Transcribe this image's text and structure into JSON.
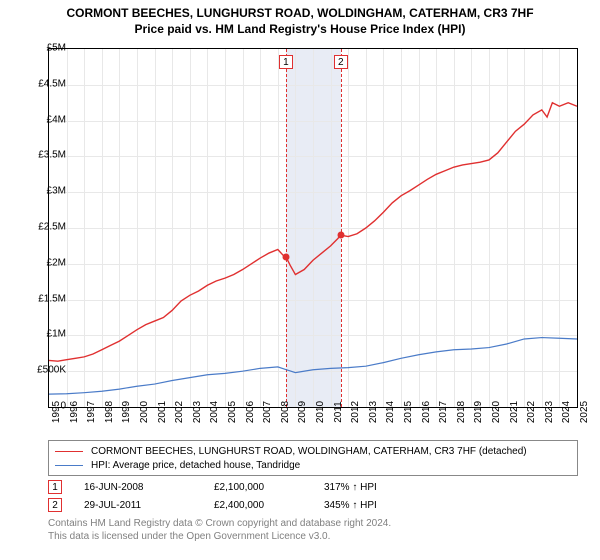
{
  "title": {
    "line1": "CORMONT BEECHES, LUNGHURST ROAD, WOLDINGHAM, CATERHAM, CR3 7HF",
    "line2": "Price paid vs. HM Land Registry's House Price Index (HPI)"
  },
  "chart": {
    "type": "line",
    "background_color": "#ffffff",
    "grid_color": "#e8e8e8",
    "border_color": "#000000",
    "ylim": [
      0,
      5000000
    ],
    "ytick_step": 500000,
    "ylabels": [
      "0",
      "£500K",
      "£1M",
      "£1.5M",
      "£2M",
      "£2.5M",
      "£3M",
      "£3.5M",
      "£4M",
      "£4.5M",
      "£5M"
    ],
    "xlim": [
      1995,
      2025
    ],
    "xlabels": [
      "1995",
      "1996",
      "1997",
      "1998",
      "1999",
      "2000",
      "2001",
      "2002",
      "2003",
      "2004",
      "2005",
      "2006",
      "2007",
      "2008",
      "2009",
      "2010",
      "2011",
      "2012",
      "2013",
      "2014",
      "2015",
      "2016",
      "2017",
      "2018",
      "2019",
      "2020",
      "2021",
      "2022",
      "2023",
      "2024",
      "2025"
    ],
    "shade_band": {
      "from": 2008.46,
      "to": 2011.58,
      "color": "#e8ecf5"
    },
    "series": [
      {
        "name": "property",
        "color": "#e03030",
        "width": 1.4,
        "label": "CORMONT BEECHES, LUNGHURST ROAD, WOLDINGHAM, CATERHAM, CR3 7HF (detached)",
        "points": [
          [
            1995.0,
            650000
          ],
          [
            1995.5,
            640000
          ],
          [
            1996.0,
            660000
          ],
          [
            1996.5,
            680000
          ],
          [
            1997.0,
            700000
          ],
          [
            1997.5,
            740000
          ],
          [
            1998.0,
            800000
          ],
          [
            1998.5,
            860000
          ],
          [
            1999.0,
            920000
          ],
          [
            1999.5,
            1000000
          ],
          [
            2000.0,
            1080000
          ],
          [
            2000.5,
            1150000
          ],
          [
            2001.0,
            1200000
          ],
          [
            2001.5,
            1250000
          ],
          [
            2002.0,
            1350000
          ],
          [
            2002.5,
            1480000
          ],
          [
            2003.0,
            1560000
          ],
          [
            2003.5,
            1620000
          ],
          [
            2004.0,
            1700000
          ],
          [
            2004.5,
            1760000
          ],
          [
            2005.0,
            1800000
          ],
          [
            2005.5,
            1850000
          ],
          [
            2006.0,
            1920000
          ],
          [
            2006.5,
            2000000
          ],
          [
            2007.0,
            2080000
          ],
          [
            2007.5,
            2150000
          ],
          [
            2008.0,
            2200000
          ],
          [
            2008.3,
            2120000
          ],
          [
            2008.46,
            2100000
          ],
          [
            2008.7,
            1980000
          ],
          [
            2009.0,
            1850000
          ],
          [
            2009.5,
            1920000
          ],
          [
            2010.0,
            2050000
          ],
          [
            2010.5,
            2150000
          ],
          [
            2011.0,
            2250000
          ],
          [
            2011.4,
            2350000
          ],
          [
            2011.58,
            2400000
          ],
          [
            2012.0,
            2380000
          ],
          [
            2012.5,
            2420000
          ],
          [
            2013.0,
            2500000
          ],
          [
            2013.5,
            2600000
          ],
          [
            2014.0,
            2720000
          ],
          [
            2014.5,
            2850000
          ],
          [
            2015.0,
            2950000
          ],
          [
            2015.5,
            3020000
          ],
          [
            2016.0,
            3100000
          ],
          [
            2016.5,
            3180000
          ],
          [
            2017.0,
            3250000
          ],
          [
            2017.5,
            3300000
          ],
          [
            2018.0,
            3350000
          ],
          [
            2018.5,
            3380000
          ],
          [
            2019.0,
            3400000
          ],
          [
            2019.5,
            3420000
          ],
          [
            2020.0,
            3450000
          ],
          [
            2020.5,
            3550000
          ],
          [
            2021.0,
            3700000
          ],
          [
            2021.5,
            3850000
          ],
          [
            2022.0,
            3950000
          ],
          [
            2022.5,
            4080000
          ],
          [
            2023.0,
            4150000
          ],
          [
            2023.3,
            4050000
          ],
          [
            2023.6,
            4250000
          ],
          [
            2024.0,
            4200000
          ],
          [
            2024.5,
            4250000
          ],
          [
            2025.0,
            4200000
          ]
        ]
      },
      {
        "name": "hpi",
        "color": "#4a7bc8",
        "width": 1.2,
        "label": "HPI: Average price, detached house, Tandridge",
        "points": [
          [
            1995.0,
            180000
          ],
          [
            1996.0,
            185000
          ],
          [
            1997.0,
            200000
          ],
          [
            1998.0,
            220000
          ],
          [
            1999.0,
            250000
          ],
          [
            2000.0,
            290000
          ],
          [
            2001.0,
            320000
          ],
          [
            2002.0,
            370000
          ],
          [
            2003.0,
            410000
          ],
          [
            2004.0,
            450000
          ],
          [
            2005.0,
            470000
          ],
          [
            2006.0,
            500000
          ],
          [
            2007.0,
            540000
          ],
          [
            2008.0,
            560000
          ],
          [
            2008.5,
            520000
          ],
          [
            2009.0,
            480000
          ],
          [
            2010.0,
            520000
          ],
          [
            2011.0,
            540000
          ],
          [
            2012.0,
            550000
          ],
          [
            2013.0,
            570000
          ],
          [
            2014.0,
            620000
          ],
          [
            2015.0,
            680000
          ],
          [
            2016.0,
            730000
          ],
          [
            2017.0,
            770000
          ],
          [
            2018.0,
            800000
          ],
          [
            2019.0,
            810000
          ],
          [
            2020.0,
            830000
          ],
          [
            2021.0,
            880000
          ],
          [
            2022.0,
            950000
          ],
          [
            2023.0,
            970000
          ],
          [
            2024.0,
            960000
          ],
          [
            2025.0,
            950000
          ]
        ]
      }
    ],
    "markers": [
      {
        "n": "1",
        "x": 2008.46,
        "y": 2100000,
        "date": "16-JUN-2008",
        "price": "£2,100,000",
        "pct": "317% ↑ HPI",
        "line_color": "#e03030"
      },
      {
        "n": "2",
        "x": 2011.58,
        "y": 2400000,
        "date": "29-JUL-2011",
        "price": "£2,400,000",
        "pct": "345% ↑ HPI",
        "line_color": "#e03030"
      }
    ]
  },
  "credit": {
    "line1": "Contains HM Land Registry data © Crown copyright and database right 2024.",
    "line2": "This data is licensed under the Open Government Licence v3.0."
  }
}
